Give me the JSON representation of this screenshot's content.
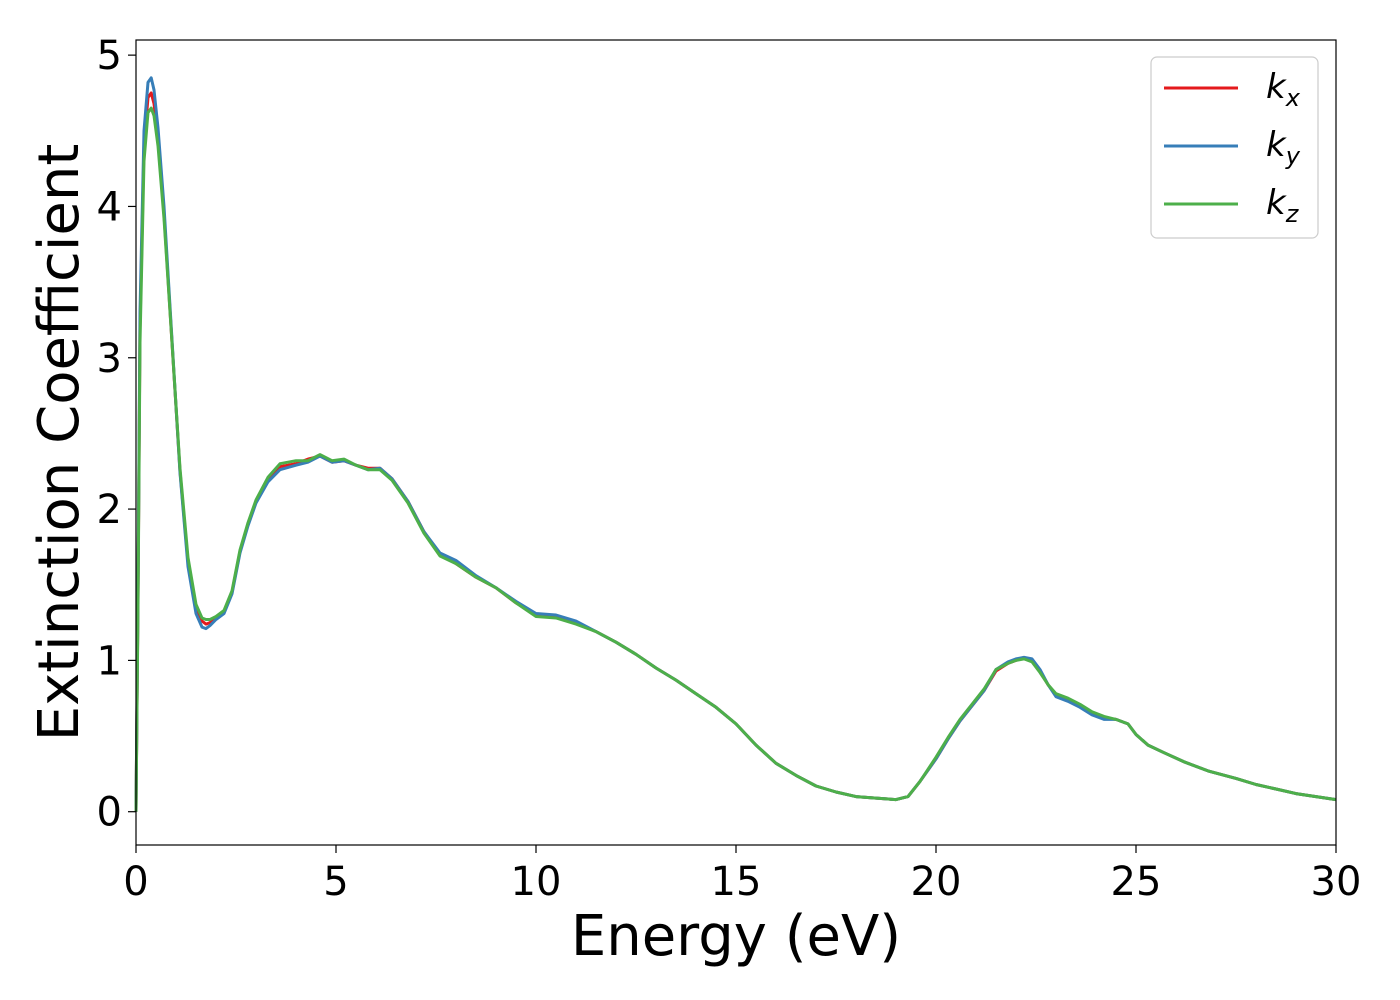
{
  "chart_data": {
    "type": "line",
    "xlabel": "Energy (eV)",
    "ylabel": "Extinction Coefficient",
    "xlim": [
      0,
      30
    ],
    "ylim": [
      -0.22,
      5.1
    ],
    "x_ticks": [
      0,
      5,
      10,
      15,
      20,
      25,
      30
    ],
    "y_ticks": [
      0,
      1,
      2,
      3,
      4,
      5
    ],
    "legend_position": "top-right",
    "grid": false,
    "series": [
      {
        "name": "k_x",
        "label_main": "k",
        "label_sub": "x",
        "color": "#e41a1c",
        "x": [
          0,
          0.05,
          0.1,
          0.2,
          0.3,
          0.38,
          0.45,
          0.55,
          0.7,
          0.9,
          1.1,
          1.3,
          1.5,
          1.65,
          1.75,
          1.85,
          2.0,
          2.2,
          2.4,
          2.6,
          2.8,
          3.0,
          3.3,
          3.6,
          4.0,
          4.3,
          4.6,
          4.9,
          5.2,
          5.5,
          5.8,
          6.1,
          6.4,
          6.8,
          7.2,
          7.6,
          8.0,
          8.5,
          9.0,
          9.5,
          10.0,
          10.5,
          11.0,
          11.5,
          12.0,
          12.5,
          13.0,
          13.5,
          14.0,
          14.5,
          15.0,
          15.5,
          16.0,
          16.5,
          17.0,
          17.5,
          18.0,
          18.5,
          19.0,
          19.3,
          19.6,
          20.0,
          20.3,
          20.6,
          20.9,
          21.2,
          21.5,
          21.8,
          22.0,
          22.2,
          22.4,
          22.6,
          22.8,
          23.0,
          23.3,
          23.6,
          23.9,
          24.2,
          24.5,
          24.8,
          25.0,
          25.3,
          25.7,
          26.2,
          26.8,
          27.5,
          28.0,
          28.5,
          29.0,
          29.5,
          30.0
        ],
        "y": [
          0.0,
          1.4,
          3.2,
          4.4,
          4.72,
          4.75,
          4.68,
          4.45,
          3.95,
          3.1,
          2.25,
          1.65,
          1.35,
          1.26,
          1.24,
          1.25,
          1.28,
          1.32,
          1.45,
          1.72,
          1.9,
          2.05,
          2.2,
          2.28,
          2.3,
          2.33,
          2.35,
          2.31,
          2.32,
          2.29,
          2.27,
          2.27,
          2.2,
          2.05,
          1.85,
          1.7,
          1.64,
          1.55,
          1.48,
          1.38,
          1.3,
          1.29,
          1.25,
          1.19,
          1.12,
          1.04,
          0.95,
          0.87,
          0.78,
          0.69,
          0.58,
          0.44,
          0.32,
          0.24,
          0.17,
          0.13,
          0.1,
          0.09,
          0.08,
          0.1,
          0.2,
          0.35,
          0.48,
          0.6,
          0.7,
          0.8,
          0.93,
          0.98,
          1.0,
          1.02,
          1.0,
          0.93,
          0.84,
          0.77,
          0.74,
          0.7,
          0.65,
          0.62,
          0.61,
          0.58,
          0.51,
          0.44,
          0.39,
          0.33,
          0.27,
          0.22,
          0.18,
          0.15,
          0.12,
          0.1,
          0.08
        ]
      },
      {
        "name": "k_y",
        "label_main": "k",
        "label_sub": "y",
        "color": "#377eb8",
        "x": [
          0,
          0.05,
          0.1,
          0.2,
          0.3,
          0.38,
          0.45,
          0.55,
          0.7,
          0.9,
          1.1,
          1.3,
          1.5,
          1.65,
          1.75,
          1.85,
          2.0,
          2.2,
          2.4,
          2.6,
          2.8,
          3.0,
          3.3,
          3.6,
          4.0,
          4.3,
          4.6,
          4.9,
          5.2,
          5.5,
          5.8,
          6.1,
          6.4,
          6.8,
          7.2,
          7.6,
          8.0,
          8.5,
          9.0,
          9.5,
          10.0,
          10.5,
          11.0,
          11.5,
          12.0,
          12.5,
          13.0,
          13.5,
          14.0,
          14.5,
          15.0,
          15.5,
          16.0,
          16.5,
          17.0,
          17.5,
          18.0,
          18.5,
          19.0,
          19.3,
          19.6,
          20.0,
          20.3,
          20.6,
          20.9,
          21.2,
          21.5,
          21.8,
          22.0,
          22.2,
          22.4,
          22.6,
          22.8,
          23.0,
          23.3,
          23.6,
          23.9,
          24.2,
          24.5,
          24.8,
          25.0,
          25.3,
          25.7,
          26.2,
          26.8,
          27.5,
          28.0,
          28.5,
          29.0,
          29.5,
          30.0
        ],
        "y": [
          0.0,
          1.45,
          3.3,
          4.5,
          4.82,
          4.85,
          4.77,
          4.52,
          4.0,
          3.12,
          2.24,
          1.62,
          1.31,
          1.22,
          1.21,
          1.23,
          1.27,
          1.31,
          1.44,
          1.71,
          1.89,
          2.04,
          2.18,
          2.26,
          2.29,
          2.31,
          2.35,
          2.31,
          2.32,
          2.29,
          2.26,
          2.27,
          2.2,
          2.05,
          1.85,
          1.71,
          1.66,
          1.56,
          1.48,
          1.39,
          1.31,
          1.3,
          1.26,
          1.19,
          1.12,
          1.04,
          0.95,
          0.87,
          0.78,
          0.69,
          0.58,
          0.44,
          0.32,
          0.24,
          0.17,
          0.13,
          0.1,
          0.09,
          0.08,
          0.1,
          0.2,
          0.35,
          0.48,
          0.6,
          0.7,
          0.8,
          0.94,
          0.99,
          1.01,
          1.02,
          1.01,
          0.94,
          0.84,
          0.76,
          0.73,
          0.69,
          0.64,
          0.61,
          0.61,
          0.58,
          0.51,
          0.44,
          0.39,
          0.33,
          0.27,
          0.22,
          0.18,
          0.15,
          0.12,
          0.1,
          0.08
        ]
      },
      {
        "name": "k_z",
        "label_main": "k",
        "label_sub": "z",
        "color": "#4daf4a",
        "x": [
          0,
          0.05,
          0.1,
          0.2,
          0.3,
          0.38,
          0.45,
          0.55,
          0.7,
          0.9,
          1.1,
          1.3,
          1.5,
          1.65,
          1.75,
          1.85,
          2.0,
          2.2,
          2.4,
          2.6,
          2.8,
          3.0,
          3.3,
          3.6,
          4.0,
          4.3,
          4.6,
          4.9,
          5.2,
          5.5,
          5.8,
          6.1,
          6.4,
          6.8,
          7.2,
          7.6,
          8.0,
          8.5,
          9.0,
          9.5,
          10.0,
          10.5,
          11.0,
          11.5,
          12.0,
          12.5,
          13.0,
          13.5,
          14.0,
          14.5,
          15.0,
          15.5,
          16.0,
          16.5,
          17.0,
          17.5,
          18.0,
          18.5,
          19.0,
          19.3,
          19.6,
          20.0,
          20.3,
          20.6,
          20.9,
          21.2,
          21.5,
          21.8,
          22.0,
          22.2,
          22.4,
          22.6,
          22.8,
          23.0,
          23.3,
          23.6,
          23.9,
          24.2,
          24.5,
          24.8,
          25.0,
          25.3,
          25.7,
          26.2,
          26.8,
          27.5,
          28.0,
          28.5,
          29.0,
          29.5,
          30.0
        ],
        "y": [
          0.0,
          1.35,
          3.1,
          4.3,
          4.62,
          4.65,
          4.6,
          4.4,
          3.92,
          3.1,
          2.27,
          1.68,
          1.37,
          1.28,
          1.27,
          1.27,
          1.29,
          1.33,
          1.46,
          1.73,
          1.91,
          2.06,
          2.21,
          2.3,
          2.32,
          2.32,
          2.36,
          2.32,
          2.33,
          2.29,
          2.26,
          2.26,
          2.19,
          2.04,
          1.84,
          1.69,
          1.64,
          1.55,
          1.48,
          1.38,
          1.29,
          1.28,
          1.24,
          1.19,
          1.12,
          1.04,
          0.95,
          0.87,
          0.78,
          0.69,
          0.58,
          0.44,
          0.32,
          0.24,
          0.17,
          0.13,
          0.1,
          0.09,
          0.08,
          0.1,
          0.2,
          0.36,
          0.49,
          0.61,
          0.71,
          0.81,
          0.94,
          0.98,
          1.0,
          1.01,
          0.99,
          0.92,
          0.84,
          0.78,
          0.75,
          0.71,
          0.66,
          0.63,
          0.61,
          0.58,
          0.51,
          0.44,
          0.39,
          0.33,
          0.27,
          0.22,
          0.18,
          0.15,
          0.12,
          0.1,
          0.08
        ]
      }
    ]
  }
}
